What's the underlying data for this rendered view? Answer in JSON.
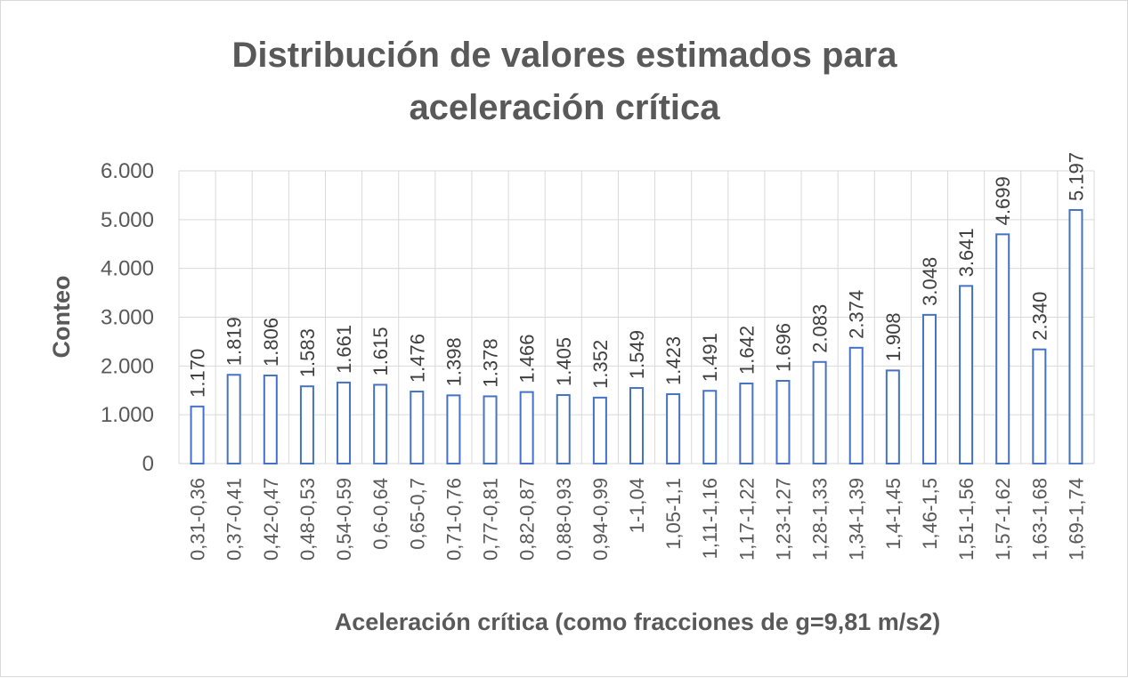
{
  "chart_data": {
    "type": "bar",
    "title_lines": [
      "Distribución de valores estimados para",
      "aceleración crítica"
    ],
    "xlabel": "Aceleración crítica (como fracciones de g=9,81 m/s2)",
    "ylabel": "Conteo",
    "ylim": [
      0,
      6000
    ],
    "y_ticks": [
      0,
      1000,
      2000,
      3000,
      4000,
      5000,
      6000
    ],
    "y_tick_labels": [
      "0",
      "1.000",
      "2.000",
      "3.000",
      "4.000",
      "5.000",
      "6.000"
    ],
    "grid": true,
    "legend": "none",
    "bar_style": "outline",
    "colors": {
      "bar_stroke": "#4472c4",
      "grid": "#d9d9d9",
      "text": "#595959"
    },
    "categories": [
      "0,31-0,36",
      "0,37-0,41",
      "0,42-0,47",
      "0,48-0,53",
      "0,54-0,59",
      "0,6-0,64",
      "0,65-0,7",
      "0,71-0,76",
      "0,77-0,81",
      "0,82-0,87",
      "0,88-0,93",
      "0,94-0,99",
      "1-1,04",
      "1,05-1,1",
      "1,11-1,16",
      "1,17-1,22",
      "1,23-1,27",
      "1,28-1,33",
      "1,34-1,39",
      "1,4-1,45",
      "1,46-1,5",
      "1,51-1,56",
      "1,57-1,62",
      "1,63-1,68",
      "1,69-1,74"
    ],
    "values": [
      1170,
      1819,
      1806,
      1583,
      1661,
      1615,
      1476,
      1398,
      1378,
      1466,
      1405,
      1352,
      1549,
      1423,
      1491,
      1642,
      1696,
      2083,
      2374,
      1908,
      3048,
      3641,
      4699,
      2340,
      5197
    ],
    "data_labels": [
      "1.170",
      "1.819",
      "1.806",
      "1.583",
      "1.661",
      "1.615",
      "1.476",
      "1.398",
      "1.378",
      "1.466",
      "1.405",
      "1.352",
      "1.549",
      "1.423",
      "1.491",
      "1.642",
      "1.696",
      "2.083",
      "2.374",
      "1.908",
      "3.048",
      "3.641",
      "4.699",
      "2.340",
      "5.197"
    ]
  }
}
